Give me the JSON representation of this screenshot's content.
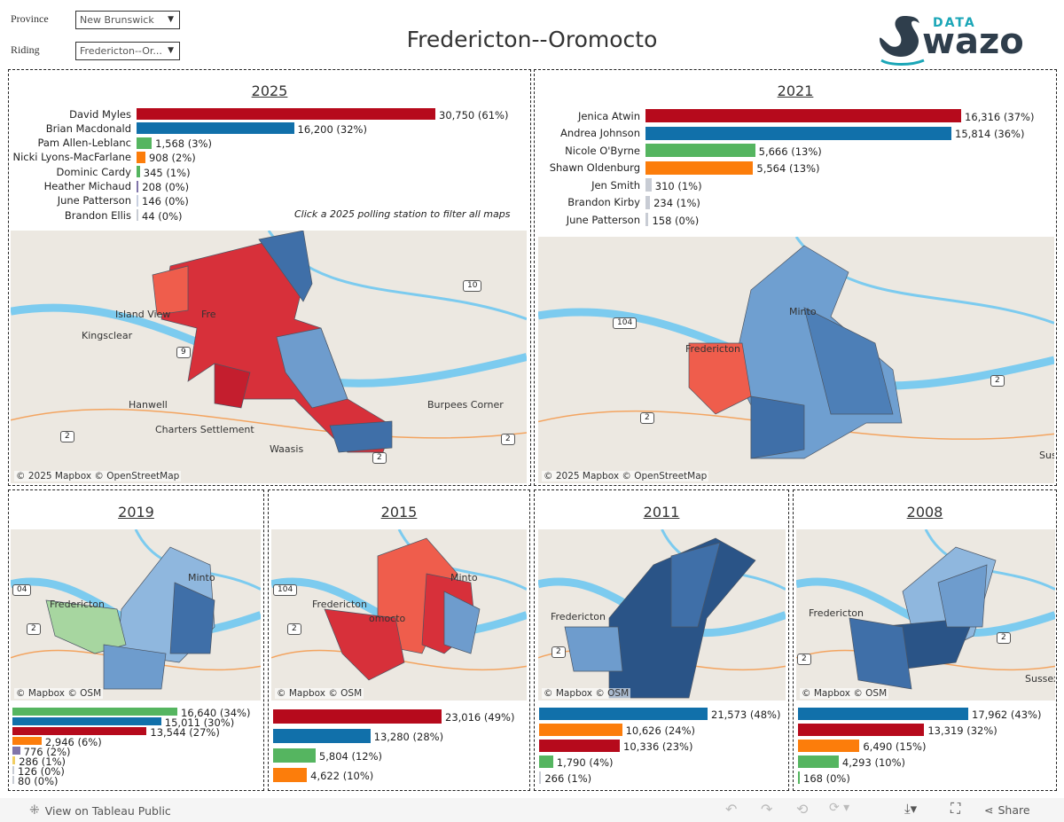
{
  "filters": {
    "province_label": "Province",
    "province_value": "New Brunswick",
    "riding_label": "Riding",
    "riding_value": "Fredericton--Or..."
  },
  "title": "Fredericton--Oromocto",
  "logo": {
    "text_top": "DATA",
    "text_main": "wazo",
    "colors": {
      "dark": "#2f3e4c",
      "teal": "#1aa6b7"
    }
  },
  "colors": {
    "red": "#b60a1c",
    "blue": "#1170aa",
    "green": "#55b560",
    "orange": "#fc7d0b",
    "purple": "#8175aa",
    "yellow": "#f1ce63",
    "gray": "#c8ccd4",
    "grayblue": "#c8d0e0"
  },
  "panels": {
    "p2025": {
      "title": "2025",
      "hint": "Click a 2025 polling station to filter all maps",
      "attribution": "© 2025 Mapbox  © OpenStreetMap",
      "places": [
        "Island View",
        "Fre",
        "Kingsclear",
        "Hanwell",
        "Charters Settlement",
        "Burpees Corner",
        "Waasis"
      ],
      "shields": [
        "10",
        "9",
        "2",
        "2",
        "2"
      ],
      "rows": [
        {
          "name": "David Myles",
          "votes": 30750,
          "label": "30,750 (61%)",
          "color": "red"
        },
        {
          "name": "Brian Macdonald",
          "votes": 16200,
          "label": "16,200 (32%)",
          "color": "blue"
        },
        {
          "name": "Pam Allen-Leblanc",
          "votes": 1568,
          "label": "1,568 (3%)",
          "color": "green"
        },
        {
          "name": "Nicki Lyons-MacFarlane",
          "votes": 908,
          "label": "908 (2%)",
          "color": "orange"
        },
        {
          "name": "Dominic Cardy",
          "votes": 345,
          "label": "345 (1%)",
          "color": "green"
        },
        {
          "name": "Heather Michaud",
          "votes": 208,
          "label": "208 (0%)",
          "color": "purple"
        },
        {
          "name": "June Patterson",
          "votes": 146,
          "label": "146 (0%)",
          "color": "grayblue"
        },
        {
          "name": "Brandon Ellis",
          "votes": 44,
          "label": "44 (0%)",
          "color": "gray"
        }
      ]
    },
    "p2021": {
      "title": "2021",
      "attribution": "© 2025 Mapbox  © OpenStreetMap",
      "places": [
        "Minto",
        "Fredericton",
        "Sus"
      ],
      "shields": [
        "104",
        "2",
        "2"
      ],
      "rows": [
        {
          "name": "Jenica Atwin",
          "votes": 16316,
          "label": "16,316 (37%)",
          "color": "red"
        },
        {
          "name": "Andrea Johnson",
          "votes": 15814,
          "label": "15,814 (36%)",
          "color": "blue"
        },
        {
          "name": "Nicole O'Byrne",
          "votes": 5666,
          "label": "5,666 (13%)",
          "color": "green"
        },
        {
          "name": "Shawn Oldenburg",
          "votes": 5564,
          "label": "5,564 (13%)",
          "color": "orange"
        },
        {
          "name": "Jen Smith",
          "votes": 310,
          "label": "310 (1%)",
          "color": "gray"
        },
        {
          "name": "Brandon Kirby",
          "votes": 234,
          "label": "234 (1%)",
          "color": "gray"
        },
        {
          "name": "June Patterson",
          "votes": 158,
          "label": "158 (0%)",
          "color": "gray"
        }
      ]
    },
    "p2019": {
      "title": "2019",
      "attribution": "© Mapbox  © OSM",
      "places": [
        "Minto",
        "Fredericton"
      ],
      "shields": [
        "04",
        "2"
      ],
      "rows": [
        {
          "votes": 16640,
          "label": "16,640 (34%)",
          "color": "green"
        },
        {
          "votes": 15011,
          "label": "15,011 (30%)",
          "color": "blue"
        },
        {
          "votes": 13544,
          "label": "13,544 (27%)",
          "color": "red"
        },
        {
          "votes": 2946,
          "label": "2,946 (6%)",
          "color": "orange"
        },
        {
          "votes": 776,
          "label": "776 (2%)",
          "color": "purple"
        },
        {
          "votes": 286,
          "label": "286 (1%)",
          "color": "yellow"
        },
        {
          "votes": 126,
          "label": "126 (0%)",
          "color": "gray"
        },
        {
          "votes": 80,
          "label": "80 (0%)",
          "color": "gray"
        }
      ]
    },
    "p2015": {
      "title": "2015",
      "attribution": "© Mapbox  © OSM",
      "places": [
        "Minto",
        "Fredericton",
        "omocto"
      ],
      "shields": [
        "104",
        "2"
      ],
      "rows": [
        {
          "votes": 23016,
          "label": "23,016 (49%)",
          "color": "red"
        },
        {
          "votes": 13280,
          "label": "13,280 (28%)",
          "color": "blue"
        },
        {
          "votes": 5804,
          "label": "5,804 (12%)",
          "color": "green"
        },
        {
          "votes": 4622,
          "label": "4,622 (10%)",
          "color": "orange"
        }
      ]
    },
    "p2011": {
      "title": "2011",
      "attribution": "© Mapbox  © OSM",
      "places": [
        "Fredericton"
      ],
      "shields": [
        "2"
      ],
      "rows": [
        {
          "votes": 21573,
          "label": "21,573 (48%)",
          "color": "blue"
        },
        {
          "votes": 10626,
          "label": "10,626 (24%)",
          "color": "orange"
        },
        {
          "votes": 10336,
          "label": "10,336 (23%)",
          "color": "red"
        },
        {
          "votes": 1790,
          "label": "1,790 (4%)",
          "color": "green"
        },
        {
          "votes": 266,
          "label": "266 (1%)",
          "color": "gray"
        }
      ]
    },
    "p2008": {
      "title": "2008",
      "attribution": "© Mapbox  © OSM",
      "places": [
        "Fredericton",
        "Sussex"
      ],
      "shields": [
        "2",
        "2"
      ],
      "rows": [
        {
          "votes": 17962,
          "label": "17,962 (43%)",
          "color": "blue"
        },
        {
          "votes": 13319,
          "label": "13,319 (32%)",
          "color": "red"
        },
        {
          "votes": 6490,
          "label": "6,490 (15%)",
          "color": "orange"
        },
        {
          "votes": 4293,
          "label": "4,293 (10%)",
          "color": "green"
        },
        {
          "votes": 168,
          "label": "168 (0%)",
          "color": "green"
        }
      ]
    }
  },
  "footer": {
    "view_label": "View on Tableau Public",
    "share_label": "Share"
  }
}
